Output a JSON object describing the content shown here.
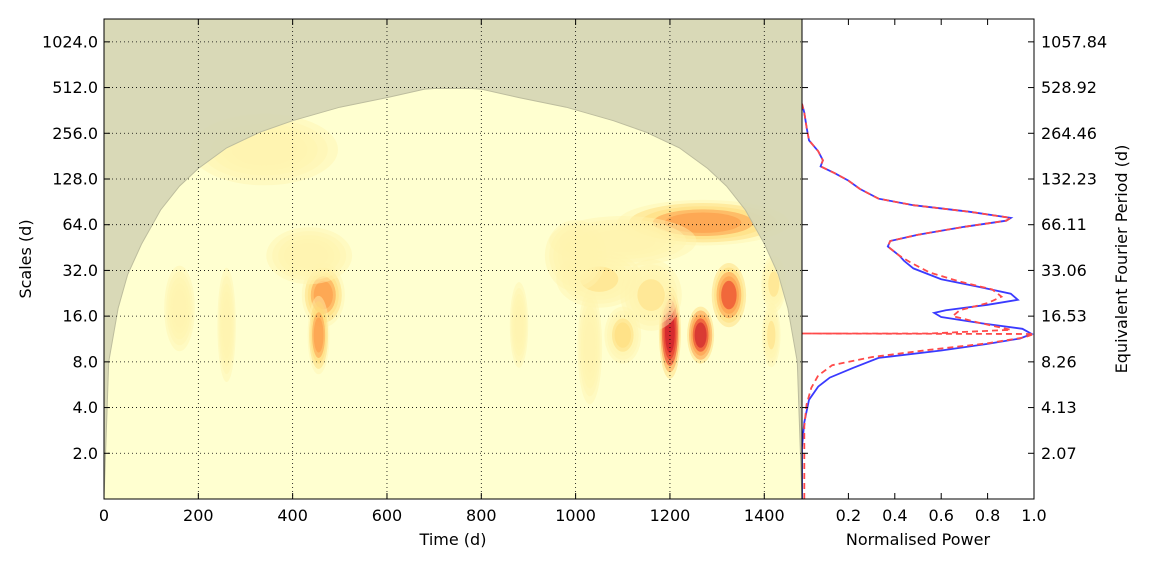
{
  "chart_data": [
    {
      "type": "heatmap",
      "xlabel": "Time (d)",
      "ylabel": "Scales (d)",
      "x_ticks": [
        0,
        200,
        400,
        600,
        800,
        1000,
        1200,
        1400
      ],
      "y_tick_labels": [
        "2.0",
        "4.0",
        "8.0",
        "16.0",
        "32.0",
        "64.0",
        "128.0",
        "256.0",
        "512.0",
        "1024.0"
      ],
      "y_tick_values": [
        2,
        4,
        8,
        16,
        32,
        64,
        128,
        256,
        512,
        1024
      ],
      "xlim": [
        0,
        1480
      ],
      "ylim": [
        1,
        1448
      ],
      "y_scale": "log2",
      "grid": true,
      "colormap": [
        "#ffffd0",
        "#fff3b0",
        "#fed976",
        "#fd8d3c",
        "#e31a1c",
        "#bd0026"
      ],
      "cone_of_influence_color": "#d6d6b4",
      "cone_of_influence": [
        [
          0,
          1
        ],
        [
          10,
          8
        ],
        [
          30,
          18
        ],
        [
          50,
          30
        ],
        [
          80,
          48
        ],
        [
          120,
          80
        ],
        [
          160,
          115
        ],
        [
          200,
          150
        ],
        [
          260,
          205
        ],
        [
          330,
          260
        ],
        [
          400,
          310
        ],
        [
          500,
          380
        ],
        [
          600,
          440
        ],
        [
          680,
          500
        ],
        [
          700,
          505
        ],
        [
          780,
          505
        ],
        [
          800,
          500
        ],
        [
          880,
          440
        ],
        [
          980,
          380
        ],
        [
          1080,
          310
        ],
        [
          1150,
          260
        ],
        [
          1220,
          205
        ],
        [
          1280,
          150
        ],
        [
          1320,
          115
        ],
        [
          1360,
          80
        ],
        [
          1400,
          48
        ],
        [
          1430,
          30
        ],
        [
          1450,
          18
        ],
        [
          1470,
          8
        ],
        [
          1480,
          1
        ]
      ],
      "blobs": [
        {
          "t": 1200,
          "s": 12.5,
          "w": 18,
          "h": 0.65,
          "p": 1.0
        },
        {
          "t": 1265,
          "s": 12,
          "w": 22,
          "h": 0.4,
          "p": 0.95
        },
        {
          "t": 1325,
          "s": 22,
          "w": 28,
          "h": 0.45,
          "p": 0.8
        },
        {
          "t": 465,
          "s": 22,
          "w": 35,
          "h": 0.45,
          "p": 0.65
        },
        {
          "t": 455,
          "s": 12,
          "w": 18,
          "h": 0.55,
          "p": 0.62
        },
        {
          "t": 1270,
          "s": 66,
          "w": 140,
          "h": 0.32,
          "p": 0.6
        },
        {
          "t": 1100,
          "s": 12,
          "w": 30,
          "h": 0.4,
          "p": 0.42
        },
        {
          "t": 1050,
          "s": 28,
          "w": 70,
          "h": 0.4,
          "p": 0.32
        },
        {
          "t": 1160,
          "s": 22,
          "w": 50,
          "h": 0.5,
          "p": 0.3
        },
        {
          "t": 1415,
          "s": 12,
          "w": 15,
          "h": 0.45,
          "p": 0.3
        },
        {
          "t": 1420,
          "s": 26,
          "w": 20,
          "h": 0.4,
          "p": 0.3
        },
        {
          "t": 435,
          "s": 40,
          "w": 70,
          "h": 0.4,
          "p": 0.25
        },
        {
          "t": 160,
          "s": 18,
          "w": 25,
          "h": 0.6,
          "p": 0.2
        },
        {
          "t": 1030,
          "s": 10,
          "w": 20,
          "h": 0.8,
          "p": 0.2
        },
        {
          "t": 1100,
          "s": 50,
          "w": 120,
          "h": 0.35,
          "p": 0.2
        },
        {
          "t": 1000,
          "s": 40,
          "w": 50,
          "h": 0.5,
          "p": 0.12
        },
        {
          "t": 880,
          "s": 14,
          "w": 15,
          "h": 0.6,
          "p": 0.1
        },
        {
          "t": 260,
          "s": 14,
          "w": 15,
          "h": 0.8,
          "p": 0.08
        },
        {
          "t": 340,
          "s": 200,
          "w": 120,
          "h": 0.5,
          "p": 0.06
        }
      ]
    },
    {
      "type": "line",
      "xlabel": "Normalised Power",
      "ylabel": "Equivalent Fourier Period (d)",
      "x_ticks": [
        "0.2",
        "0.4",
        "0.6",
        "0.8",
        "1.0"
      ],
      "x_tick_values": [
        0.2,
        0.4,
        0.6,
        0.8,
        1.0
      ],
      "xlim": [
        0,
        1
      ],
      "y_tick_labels": [
        "2.07",
        "4.13",
        "8.26",
        "16.53",
        "33.06",
        "66.11",
        "132.23",
        "264.46",
        "528.92",
        "1057.84"
      ],
      "y_tick_values": [
        2,
        4,
        8,
        16,
        32,
        64,
        128,
        256,
        512,
        1024
      ],
      "series": [
        {
          "color": "#3a3aff",
          "dash": "solid",
          "points": [
            [
              0.0,
              1
            ],
            [
              0.0,
              2.2
            ],
            [
              0.01,
              3.2
            ],
            [
              0.03,
              4.5
            ],
            [
              0.07,
              5.5
            ],
            [
              0.12,
              6.3
            ],
            [
              0.22,
              7.3
            ],
            [
              0.33,
              8.5
            ],
            [
              0.6,
              9.5
            ],
            [
              0.8,
              10.5
            ],
            [
              0.94,
              11.4
            ],
            [
              0.99,
              12.2
            ],
            [
              0.95,
              13.2
            ],
            [
              0.78,
              14.3
            ],
            [
              0.6,
              15.8
            ],
            [
              0.57,
              16.8
            ],
            [
              0.62,
              17.5
            ],
            [
              0.8,
              19.0
            ],
            [
              0.93,
              20.5
            ],
            [
              0.9,
              22.5
            ],
            [
              0.76,
              25.0
            ],
            [
              0.6,
              28.0
            ],
            [
              0.48,
              33.0
            ],
            [
              0.44,
              37.0
            ],
            [
              0.42,
              40.0
            ],
            [
              0.37,
              46.0
            ],
            [
              0.38,
              50.0
            ],
            [
              0.5,
              55.0
            ],
            [
              0.7,
              62.0
            ],
            [
              0.88,
              68.0
            ],
            [
              0.9,
              71.0
            ],
            [
              0.72,
              78.0
            ],
            [
              0.48,
              86.0
            ],
            [
              0.33,
              95.0
            ],
            [
              0.25,
              110.0
            ],
            [
              0.2,
              125.0
            ],
            [
              0.14,
              140.0
            ],
            [
              0.08,
              155.0
            ],
            [
              0.09,
              170.0
            ],
            [
              0.07,
              195.0
            ],
            [
              0.03,
              230.0
            ],
            [
              0.02,
              280.0
            ],
            [
              0.01,
              350.0
            ],
            [
              0.0,
              400.0
            ]
          ]
        },
        {
          "color": "#ff4a4a",
          "dash": "dashed",
          "points": [
            [
              0.01,
              1
            ],
            [
              0.01,
              3.0
            ],
            [
              0.02,
              4.2
            ],
            [
              0.04,
              5.4
            ],
            [
              0.07,
              6.5
            ],
            [
              0.13,
              7.6
            ],
            [
              0.3,
              8.6
            ],
            [
              0.55,
              9.6
            ],
            [
              0.8,
              10.6
            ],
            [
              0.96,
              11.6
            ],
            [
              1.0,
              12.2
            ],
            [
              0.0,
              12.3
            ],
            [
              0.55,
              12.3
            ],
            [
              0.9,
              13.0
            ],
            [
              0.76,
              14.5
            ],
            [
              0.65,
              16.0
            ],
            [
              0.68,
              17.5
            ],
            [
              0.8,
              19.5
            ],
            [
              0.86,
              21.5
            ],
            [
              0.82,
              24.0
            ],
            [
              0.68,
              27.0
            ],
            [
              0.55,
              31.0
            ],
            [
              0.47,
              36.0
            ],
            [
              0.42,
              40.0
            ],
            [
              0.37,
              46.0
            ],
            [
              0.38,
              50.0
            ],
            [
              0.5,
              55.0
            ],
            [
              0.7,
              62.0
            ],
            [
              0.88,
              68.0
            ],
            [
              0.9,
              71.0
            ],
            [
              0.72,
              78.0
            ],
            [
              0.48,
              86.0
            ],
            [
              0.33,
              95.0
            ],
            [
              0.25,
              110.0
            ],
            [
              0.2,
              125.0
            ],
            [
              0.14,
              140.0
            ],
            [
              0.08,
              155.0
            ],
            [
              0.09,
              170.0
            ],
            [
              0.07,
              195.0
            ],
            [
              0.03,
              230.0
            ],
            [
              0.02,
              280.0
            ],
            [
              0.01,
              350.0
            ],
            [
              0.0,
              400.0
            ]
          ]
        }
      ]
    }
  ]
}
